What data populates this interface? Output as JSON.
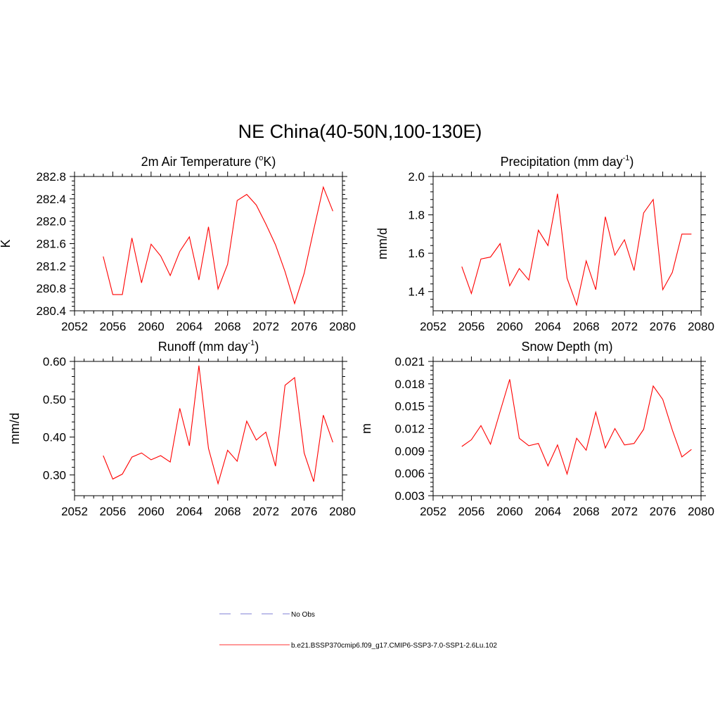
{
  "figure": {
    "title": "NE China(40-50N,100-130E)"
  },
  "legend": {
    "items": [
      {
        "label": "No Obs",
        "color": "#9999dd",
        "dashed": true
      },
      {
        "label": "b.e21.BSSP370cmip6.f09_g17.CMIP6-SSP3-7.0-SSP1-2.6Lu.102",
        "color": "#ff3333",
        "dashed": false
      }
    ]
  },
  "chart_data": [
    {
      "type": "line",
      "title": "2m Air Temperature (oK)",
      "title_parts": {
        "pre": "2m Air Temperature (",
        "sup": "o",
        "post": "K)"
      },
      "ylabel": "K",
      "xlim": [
        2052,
        2080
      ],
      "ylim": [
        280.4,
        282.8
      ],
      "xticks": [
        "2052",
        "2056",
        "2060",
        "2064",
        "2068",
        "2072",
        "2076",
        "2080"
      ],
      "yticks": [
        "280.4",
        "280.8",
        "281.2",
        "281.6",
        "282.0",
        "282.4",
        "282.8"
      ],
      "series": [
        {
          "color": "#ff0000",
          "x": [
            2055,
            2056,
            2057,
            2058,
            2059,
            2060,
            2061,
            2062,
            2063,
            2064,
            2065,
            2066,
            2067,
            2068,
            2069,
            2070,
            2071,
            2072,
            2073,
            2074,
            2075,
            2076,
            2077,
            2078,
            2079
          ],
          "y": [
            281.37,
            280.69,
            280.69,
            281.7,
            280.9,
            281.59,
            281.38,
            281.03,
            281.46,
            281.72,
            280.95,
            281.9,
            280.79,
            281.23,
            282.37,
            282.48,
            282.29,
            281.95,
            281.58,
            281.1,
            280.53,
            281.07,
            281.85,
            282.61,
            282.18
          ]
        }
      ]
    },
    {
      "type": "line",
      "title": "Precipitation (mm day-1)",
      "title_parts": {
        "pre": "Precipitation (mm day",
        "sup": "-1",
        "post": ")"
      },
      "ylabel": "mm/d",
      "xlim": [
        2052,
        2080
      ],
      "ylim": [
        1.3,
        2.0
      ],
      "xticks": [
        "2052",
        "2056",
        "2060",
        "2064",
        "2068",
        "2072",
        "2076",
        "2080"
      ],
      "yticks": [
        "1.4",
        "1.6",
        "1.8",
        "2.0"
      ],
      "series": [
        {
          "color": "#ff0000",
          "x": [
            2055,
            2056,
            2057,
            2058,
            2059,
            2060,
            2061,
            2062,
            2063,
            2064,
            2065,
            2066,
            2067,
            2068,
            2069,
            2070,
            2071,
            2072,
            2073,
            2074,
            2075,
            2076,
            2077,
            2078,
            2079
          ],
          "y": [
            1.53,
            1.39,
            1.57,
            1.58,
            1.65,
            1.43,
            1.52,
            1.46,
            1.72,
            1.64,
            1.91,
            1.47,
            1.33,
            1.56,
            1.41,
            1.79,
            1.59,
            1.67,
            1.51,
            1.81,
            1.88,
            1.41,
            1.5,
            1.7,
            1.7
          ]
        }
      ]
    },
    {
      "type": "line",
      "title": "Runoff (mm day-1)",
      "title_parts": {
        "pre": "Runoff (mm day",
        "sup": "-1",
        "post": ")"
      },
      "ylabel": "mm/d",
      "xlim": [
        2052,
        2080
      ],
      "ylim": [
        0.245,
        0.6
      ],
      "xticks": [
        "2052",
        "2056",
        "2060",
        "2064",
        "2068",
        "2072",
        "2076",
        "2080"
      ],
      "yticks": [
        "0.30",
        "0.40",
        "0.50",
        "0.60"
      ],
      "series": [
        {
          "color": "#ff0000",
          "x": [
            2055,
            2056,
            2057,
            2058,
            2059,
            2060,
            2061,
            2062,
            2063,
            2064,
            2065,
            2066,
            2067,
            2068,
            2069,
            2070,
            2071,
            2072,
            2073,
            2074,
            2075,
            2076,
            2077,
            2078,
            2079
          ],
          "y": [
            0.351,
            0.289,
            0.302,
            0.347,
            0.358,
            0.34,
            0.351,
            0.334,
            0.476,
            0.377,
            0.589,
            0.37,
            0.277,
            0.365,
            0.336,
            0.442,
            0.392,
            0.413,
            0.323,
            0.537,
            0.557,
            0.358,
            0.282,
            0.458,
            0.386
          ]
        }
      ]
    },
    {
      "type": "line",
      "title": "Snow Depth (m)",
      "title_parts": {
        "pre": "Snow Depth (m)",
        "sup": "",
        "post": ""
      },
      "ylabel": "m",
      "xlim": [
        2052,
        2080
      ],
      "ylim": [
        0.003,
        0.021
      ],
      "xticks": [
        "2052",
        "2056",
        "2060",
        "2064",
        "2068",
        "2072",
        "2076",
        "2080"
      ],
      "yticks": [
        "0.003",
        "0.006",
        "0.009",
        "0.012",
        "0.015",
        "0.018",
        "0.021"
      ],
      "series": [
        {
          "color": "#ff0000",
          "x": [
            2055,
            2056,
            2057,
            2058,
            2059,
            2060,
            2061,
            2062,
            2063,
            2064,
            2065,
            2066,
            2067,
            2068,
            2069,
            2070,
            2071,
            2072,
            2073,
            2074,
            2075,
            2076,
            2077,
            2078,
            2079
          ],
          "y": [
            0.0096,
            0.0105,
            0.0124,
            0.0099,
            0.0143,
            0.0186,
            0.0107,
            0.0097,
            0.01,
            0.007,
            0.0098,
            0.0059,
            0.0107,
            0.0091,
            0.0142,
            0.0094,
            0.012,
            0.0098,
            0.01,
            0.0119,
            0.0177,
            0.0159,
            0.0118,
            0.0082,
            0.0092
          ]
        }
      ]
    }
  ]
}
